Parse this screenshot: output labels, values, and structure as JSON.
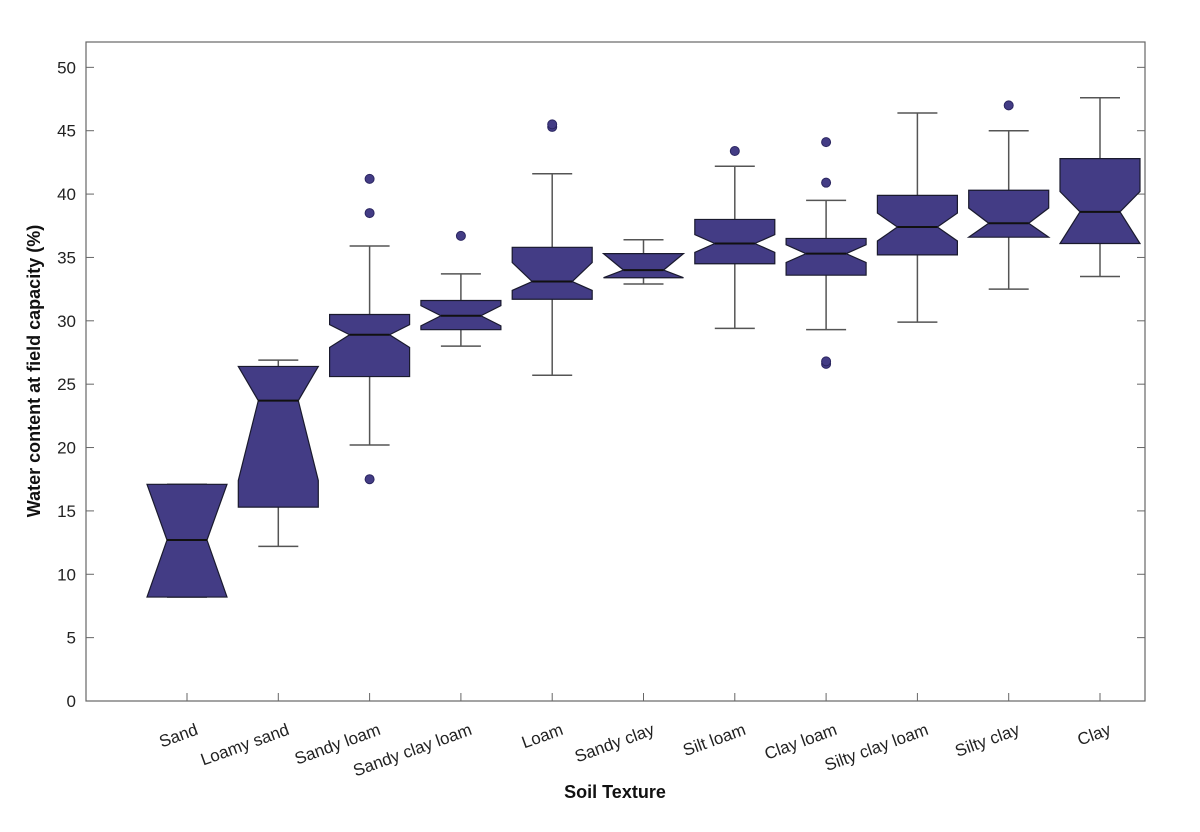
{
  "chart_data": {
    "type": "boxplot",
    "title": "",
    "xlabel": "Soil Texture",
    "ylabel": "Water content at field capacity (%)",
    "ylim": [
      0,
      52
    ],
    "yticks": [
      0,
      5,
      10,
      15,
      20,
      25,
      30,
      35,
      40,
      45,
      50
    ],
    "grid": false,
    "notched": true,
    "color": "#433C85",
    "categories": [
      "Sand",
      "Loamy sand",
      "Sandy loam",
      "Sandy clay loam",
      "Loam",
      "Sandy clay",
      "Silt loam",
      "Clay loam",
      "Silty clay loam",
      "Silty clay",
      "Clay"
    ],
    "boxes": [
      {
        "q1": 8.2,
        "median": 12.7,
        "q3": 17.1,
        "whisker_low": 8.2,
        "whisker_high": 17.1,
        "notch_low": 8.2,
        "notch_high": 17.1,
        "outliers": []
      },
      {
        "q1": 15.3,
        "median": 23.7,
        "q3": 26.4,
        "whisker_low": 12.2,
        "whisker_high": 26.9,
        "notch_low": 17.4,
        "notch_high": 26.4,
        "outliers": []
      },
      {
        "q1": 25.6,
        "median": 28.9,
        "q3": 30.5,
        "whisker_low": 20.2,
        "whisker_high": 35.9,
        "notch_low": 27.9,
        "notch_high": 29.7,
        "outliers": [
          17.5,
          38.5,
          41.2
        ]
      },
      {
        "q1": 29.3,
        "median": 30.4,
        "q3": 31.6,
        "whisker_low": 28.0,
        "whisker_high": 33.7,
        "notch_low": 29.6,
        "notch_high": 31.2,
        "outliers": [
          36.7
        ]
      },
      {
        "q1": 31.7,
        "median": 33.1,
        "q3": 35.8,
        "whisker_low": 25.7,
        "whisker_high": 41.6,
        "notch_low": 32.4,
        "notch_high": 34.6,
        "outliers": [
          45.3,
          45.5
        ]
      },
      {
        "q1": 33.4,
        "median": 34.0,
        "q3": 35.3,
        "whisker_low": 32.9,
        "whisker_high": 36.4,
        "notch_low": 33.4,
        "notch_high": 35.3,
        "outliers": []
      },
      {
        "q1": 34.5,
        "median": 36.1,
        "q3": 38.0,
        "whisker_low": 29.4,
        "whisker_high": 42.2,
        "notch_low": 35.4,
        "notch_high": 36.8,
        "outliers": [
          43.4
        ]
      },
      {
        "q1": 33.6,
        "median": 35.3,
        "q3": 36.5,
        "whisker_low": 29.3,
        "whisker_high": 39.5,
        "notch_low": 34.6,
        "notch_high": 36.0,
        "outliers": [
          26.6,
          26.8,
          40.9,
          44.1
        ]
      },
      {
        "q1": 35.2,
        "median": 37.4,
        "q3": 39.9,
        "whisker_low": 29.9,
        "whisker_high": 46.4,
        "notch_low": 36.3,
        "notch_high": 38.5,
        "outliers": []
      },
      {
        "q1": 36.6,
        "median": 37.7,
        "q3": 40.3,
        "whisker_low": 32.5,
        "whisker_high": 45.0,
        "notch_low": 36.6,
        "notch_high": 38.9,
        "outliers": [
          47.0
        ]
      },
      {
        "q1": 36.1,
        "median": 38.6,
        "q3": 42.8,
        "whisker_low": 33.5,
        "whisker_high": 47.6,
        "notch_low": 36.1,
        "notch_high": 40.2,
        "outliers": []
      }
    ]
  }
}
